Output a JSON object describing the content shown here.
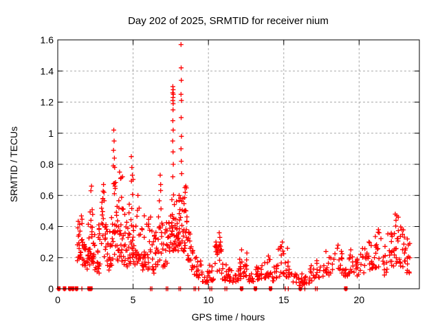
{
  "chart_data": {
    "type": "scatter",
    "title": "Day 202 of 2025, SRMTID for receiver nium",
    "xlabel": "GPS time / hours",
    "ylabel": "SRMTID / TECUs",
    "xlim": [
      0,
      24
    ],
    "ylim": [
      0,
      1.6
    ],
    "xtick_values": [
      0,
      5,
      10,
      15,
      20
    ],
    "xtick_labels": [
      "0",
      "5",
      "10",
      "15",
      "20"
    ],
    "ytick_values": [
      0,
      0.2,
      0.4,
      0.6,
      0.8,
      1.0,
      1.2,
      1.4,
      1.6
    ],
    "ytick_labels": [
      "0",
      "0.2",
      "0.4",
      "0.6",
      "0.8",
      "1",
      "1.2",
      "1.4",
      "1.6"
    ],
    "grid": true,
    "legend": "none",
    "marker": "plus",
    "marker_color": "#ff0000",
    "grid_color": "#a8a8a8",
    "border_color": "#000000",
    "background_color": "#ffffff",
    "seed": 20250202,
    "spike_points": [
      [
        2.24,
        0.66
      ],
      [
        2.2,
        0.63
      ],
      [
        3.04,
        0.67
      ],
      [
        3.07,
        0.62
      ],
      [
        3.72,
        1.02
      ],
      [
        3.74,
        0.95
      ],
      [
        3.7,
        0.89
      ],
      [
        3.76,
        0.84
      ],
      [
        3.69,
        0.79
      ],
      [
        3.78,
        0.78
      ],
      [
        4.1,
        0.75
      ],
      [
        4.3,
        0.72
      ],
      [
        4.88,
        0.85
      ],
      [
        4.92,
        0.78
      ],
      [
        4.95,
        0.73
      ],
      [
        5.32,
        0.6
      ],
      [
        6.8,
        0.73
      ],
      [
        6.83,
        0.67
      ],
      [
        7.64,
        1.3
      ],
      [
        7.66,
        1.28
      ],
      [
        7.63,
        1.26
      ],
      [
        7.67,
        1.25
      ],
      [
        7.65,
        1.23
      ],
      [
        7.64,
        1.21
      ],
      [
        7.66,
        1.19
      ],
      [
        7.65,
        1.15
      ],
      [
        7.64,
        1.08
      ],
      [
        7.66,
        1.02
      ],
      [
        7.63,
        0.95
      ],
      [
        7.65,
        0.88
      ],
      [
        7.67,
        0.8
      ],
      [
        7.64,
        0.72
      ],
      [
        8.18,
        1.57
      ],
      [
        8.19,
        1.42
      ],
      [
        8.2,
        1.34
      ],
      [
        8.18,
        1.25
      ],
      [
        8.21,
        1.21
      ],
      [
        8.19,
        1.1
      ],
      [
        8.21,
        0.98
      ],
      [
        8.18,
        0.9
      ],
      [
        8.2,
        0.82
      ],
      [
        8.22,
        0.74
      ],
      [
        8.5,
        0.66
      ],
      [
        8.46,
        0.62
      ],
      [
        10.72,
        0.36
      ],
      [
        10.76,
        0.33
      ],
      [
        10.8,
        0.3
      ],
      [
        10.5,
        0.3
      ],
      [
        12.2,
        0.25
      ],
      [
        12.55,
        0.23
      ],
      [
        14.9,
        0.3
      ],
      [
        14.85,
        0.27
      ],
      [
        15.25,
        0.26
      ],
      [
        17.8,
        0.24
      ],
      [
        18.6,
        0.28
      ],
      [
        18.55,
        0.26
      ],
      [
        19.45,
        0.25
      ],
      [
        20.65,
        0.3
      ],
      [
        21.28,
        0.38
      ],
      [
        21.33,
        0.36
      ],
      [
        22.4,
        0.48
      ],
      [
        22.5,
        0.47
      ],
      [
        22.6,
        0.46
      ],
      [
        22.45,
        0.44
      ],
      [
        22.88,
        0.35
      ],
      [
        23.2,
        0.32
      ]
    ],
    "zero_single_xs": [
      1.6,
      6.15,
      6.25,
      7.2,
      7.3,
      8.05,
      8.15,
      9.05,
      9.15,
      9.35,
      10.1,
      10.22,
      11.1,
      11.22,
      15.1,
      15.3,
      16.4,
      17.1,
      17.22
    ],
    "zero_square_xs": [
      0.07,
      0.45,
      0.8,
      1.0,
      1.25,
      2.08,
      2.2,
      12.2,
      13.12,
      14.12,
      16.1,
      19.12
    ],
    "cluster_bands": [
      [
        1.3,
        1.45,
        12,
        0.18,
        0.45
      ],
      [
        1.45,
        1.62,
        14,
        0.2,
        0.51
      ],
      [
        1.62,
        1.8,
        11,
        0.15,
        0.38
      ],
      [
        1.8,
        2.0,
        9,
        0.12,
        0.3
      ],
      [
        2.0,
        2.15,
        11,
        0.15,
        0.46
      ],
      [
        2.15,
        2.32,
        15,
        0.16,
        0.66
      ],
      [
        2.32,
        2.5,
        13,
        0.12,
        0.5
      ],
      [
        2.5,
        2.72,
        10,
        0.1,
        0.4
      ],
      [
        2.72,
        2.92,
        9,
        0.1,
        0.42
      ],
      [
        2.9,
        3.1,
        13,
        0.2,
        0.67
      ],
      [
        3.1,
        3.3,
        11,
        0.14,
        0.44
      ],
      [
        3.3,
        3.5,
        11,
        0.12,
        0.38
      ],
      [
        3.5,
        3.7,
        12,
        0.15,
        0.46
      ],
      [
        3.7,
        3.86,
        13,
        0.22,
        0.76
      ],
      [
        3.86,
        4.05,
        13,
        0.18,
        0.58
      ],
      [
        4.05,
        4.25,
        13,
        0.2,
        0.74
      ],
      [
        4.25,
        4.45,
        11,
        0.15,
        0.55
      ],
      [
        4.45,
        4.65,
        11,
        0.14,
        0.48
      ],
      [
        4.65,
        4.85,
        12,
        0.16,
        0.55
      ],
      [
        4.85,
        5.0,
        13,
        0.2,
        0.72
      ],
      [
        5.0,
        5.2,
        11,
        0.15,
        0.45
      ],
      [
        5.2,
        5.45,
        13,
        0.16,
        0.57
      ],
      [
        5.45,
        5.7,
        11,
        0.12,
        0.4
      ],
      [
        5.7,
        5.95,
        12,
        0.14,
        0.48
      ],
      [
        5.95,
        6.2,
        13,
        0.12,
        0.52
      ],
      [
        6.2,
        6.45,
        11,
        0.1,
        0.4
      ],
      [
        6.45,
        6.65,
        11,
        0.14,
        0.45
      ],
      [
        6.65,
        6.9,
        13,
        0.18,
        0.7
      ],
      [
        6.9,
        7.15,
        11,
        0.14,
        0.45
      ],
      [
        7.15,
        7.4,
        13,
        0.16,
        0.5
      ],
      [
        7.4,
        7.6,
        13,
        0.2,
        0.58
      ],
      [
        7.6,
        7.8,
        16,
        0.24,
        0.66
      ],
      [
        7.8,
        8.0,
        13,
        0.24,
        0.58
      ],
      [
        8.0,
        8.2,
        14,
        0.26,
        0.64
      ],
      [
        8.2,
        8.4,
        14,
        0.24,
        0.6
      ],
      [
        8.4,
        8.62,
        16,
        0.26,
        0.66
      ],
      [
        8.62,
        8.82,
        11,
        0.17,
        0.4
      ],
      [
        8.82,
        9.02,
        9,
        0.12,
        0.28
      ],
      [
        9.02,
        9.3,
        11,
        0.08,
        0.22
      ],
      [
        9.3,
        9.6,
        9,
        0.06,
        0.18
      ],
      [
        9.6,
        10.0,
        11,
        0.04,
        0.14
      ],
      [
        10.0,
        10.4,
        11,
        0.05,
        0.16
      ],
      [
        10.4,
        10.62,
        9,
        0.08,
        0.28
      ],
      [
        10.62,
        10.9,
        12,
        0.1,
        0.35
      ],
      [
        10.9,
        11.2,
        9,
        0.05,
        0.17
      ],
      [
        11.2,
        11.6,
        11,
        0.04,
        0.14
      ],
      [
        11.6,
        12.0,
        11,
        0.04,
        0.12
      ],
      [
        12.0,
        12.32,
        11,
        0.06,
        0.22
      ],
      [
        12.32,
        12.65,
        11,
        0.06,
        0.21
      ],
      [
        12.65,
        13.0,
        11,
        0.04,
        0.12
      ],
      [
        13.0,
        13.35,
        11,
        0.05,
        0.14
      ],
      [
        13.35,
        13.8,
        11,
        0.06,
        0.19
      ],
      [
        13.8,
        14.2,
        12,
        0.07,
        0.22
      ],
      [
        14.2,
        14.6,
        11,
        0.05,
        0.15
      ],
      [
        14.6,
        15.05,
        13,
        0.08,
        0.28
      ],
      [
        15.05,
        15.4,
        10,
        0.07,
        0.22
      ],
      [
        15.4,
        15.9,
        10,
        0.04,
        0.13
      ],
      [
        15.9,
        16.3,
        11,
        0.02,
        0.1
      ],
      [
        16.3,
        16.7,
        11,
        0.03,
        0.12
      ],
      [
        16.7,
        17.1,
        11,
        0.05,
        0.15
      ],
      [
        17.1,
        17.5,
        11,
        0.07,
        0.18
      ],
      [
        17.5,
        18.2,
        14,
        0.08,
        0.22
      ],
      [
        18.2,
        18.9,
        14,
        0.1,
        0.27
      ],
      [
        18.9,
        19.3,
        11,
        0.08,
        0.2
      ],
      [
        19.3,
        19.7,
        12,
        0.1,
        0.24
      ],
      [
        19.7,
        20.1,
        11,
        0.08,
        0.22
      ],
      [
        20.1,
        20.6,
        13,
        0.1,
        0.26
      ],
      [
        20.6,
        21.0,
        12,
        0.12,
        0.3
      ],
      [
        21.0,
        21.5,
        15,
        0.12,
        0.38
      ],
      [
        21.5,
        21.9,
        11,
        0.08,
        0.28
      ],
      [
        21.9,
        22.3,
        13,
        0.12,
        0.36
      ],
      [
        22.3,
        22.75,
        17,
        0.15,
        0.47
      ],
      [
        22.75,
        23.1,
        14,
        0.14,
        0.4
      ],
      [
        23.1,
        23.38,
        10,
        0.1,
        0.3
      ]
    ]
  }
}
